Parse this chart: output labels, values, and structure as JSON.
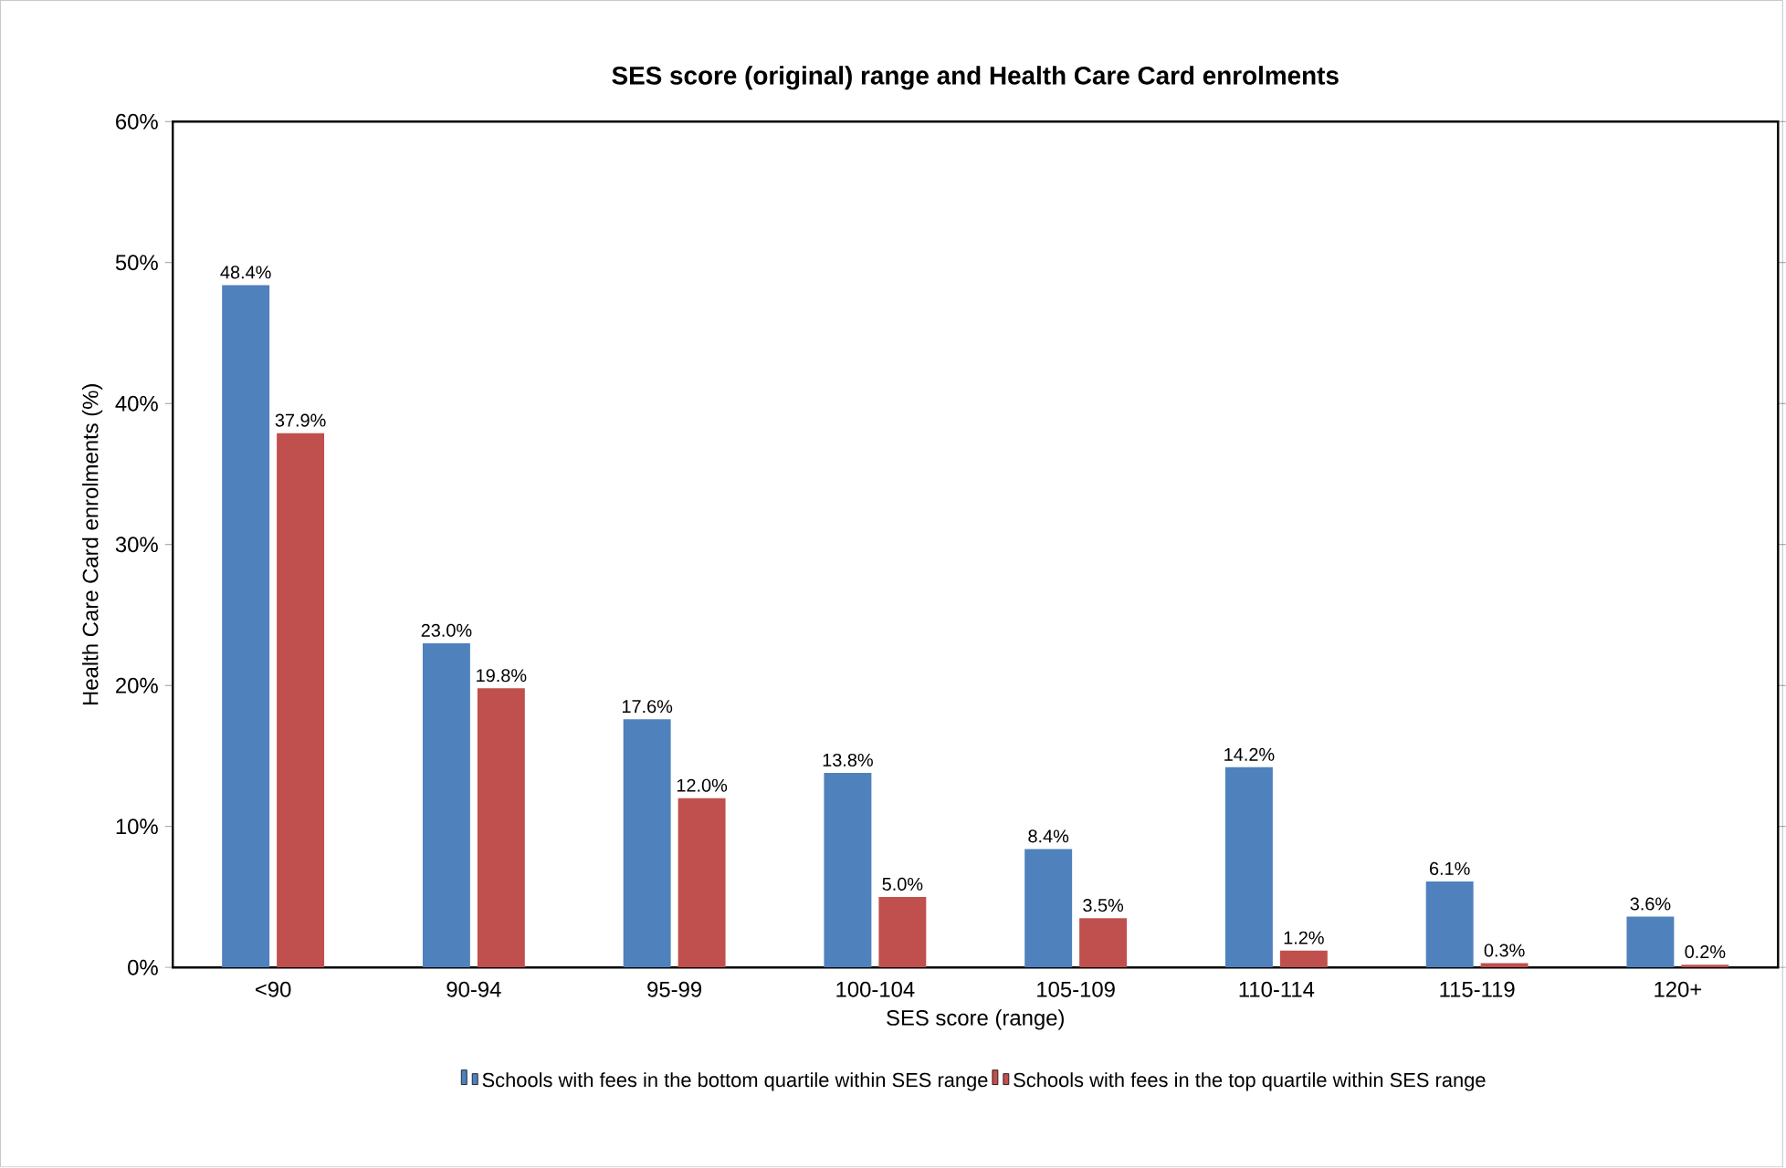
{
  "chart_data": {
    "type": "bar",
    "title": "SES score (original) range and Health Care Card enrolments",
    "xlabel": "SES score (range)",
    "ylabel": "Health Care Card enrolments (%)",
    "categories": [
      "<90",
      "90-94",
      "95-99",
      "100-104",
      "105-109",
      "110-114",
      "115-119",
      "120+"
    ],
    "series": [
      {
        "name": "Schools with fees in the bottom quartile within SES range",
        "color": "#4f81bd",
        "values": [
          48.4,
          23.0,
          17.6,
          13.8,
          8.4,
          14.2,
          6.1,
          3.6
        ],
        "value_labels": [
          "48.4%",
          "23.0%",
          "17.6%",
          "13.8%",
          "8.4%",
          "14.2%",
          "6.1%",
          "3.6%"
        ]
      },
      {
        "name": "Schools with fees in the top quartile within SES range",
        "color": "#c0504d",
        "values": [
          37.9,
          19.8,
          12.0,
          5.0,
          3.5,
          1.2,
          0.3,
          0.2
        ],
        "value_labels": [
          "37.9%",
          "19.8%",
          "12.0%",
          "5.0%",
          "3.5%",
          "1.2%",
          "0.3%",
          "0.2%"
        ]
      }
    ],
    "ylim": [
      0,
      60
    ],
    "yticks": [
      {
        "value": 0,
        "label": "0%"
      },
      {
        "value": 10,
        "label": "10%"
      },
      {
        "value": 20,
        "label": "20%"
      },
      {
        "value": 30,
        "label": "30%"
      },
      {
        "value": 40,
        "label": "40%"
      },
      {
        "value": 50,
        "label": "50%"
      },
      {
        "value": 60,
        "label": "60%"
      }
    ],
    "grid": false,
    "legend": "bottom"
  }
}
